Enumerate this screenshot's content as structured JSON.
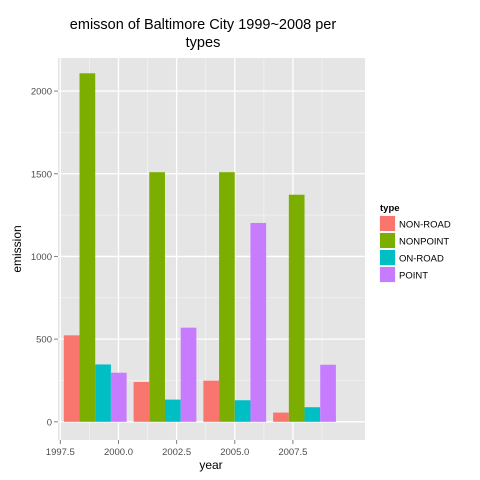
{
  "chart_data": {
    "type": "bar",
    "title_lines": [
      "emisson of Baltimore City 1999~2008 per",
      "types"
    ],
    "xlabel": "year",
    "ylabel": "emission",
    "x_ticks": [
      "1997.5",
      "2000.0",
      "2002.5",
      "2005.0",
      "2007.5"
    ],
    "x_tick_values": [
      1997.5,
      2000.0,
      2002.5,
      2005.0,
      2007.5
    ],
    "y_ticks": [
      "0",
      "500",
      "1000",
      "1500",
      "2000"
    ],
    "y_tick_values": [
      0,
      500,
      1000,
      1500,
      2000
    ],
    "xlim": [
      1997.4,
      2010.6
    ],
    "ylim": [
      -110,
      2200
    ],
    "x": [
      1999,
      2002,
      2005,
      2008
    ],
    "legend": {
      "title": "type",
      "position": "right"
    },
    "series": [
      {
        "name": "NON-ROAD",
        "color": "#F8766D",
        "values": [
          522.94,
          240.85,
          248.93,
          55.82
        ]
      },
      {
        "name": "NONPOINT",
        "color": "#7CAE00",
        "values": [
          2107.63,
          1509.5,
          1509.5,
          1373.21
        ]
      },
      {
        "name": "ON-ROAD",
        "color": "#00BFC4",
        "values": [
          346.82,
          134.31,
          130.43,
          88.28
        ]
      },
      {
        "name": "POINT",
        "color": "#C77CFF",
        "values": [
          296.8,
          569.26,
          1202.49,
          344.98
        ]
      }
    ],
    "grid": true,
    "panel_background": "#E5E5E5"
  }
}
